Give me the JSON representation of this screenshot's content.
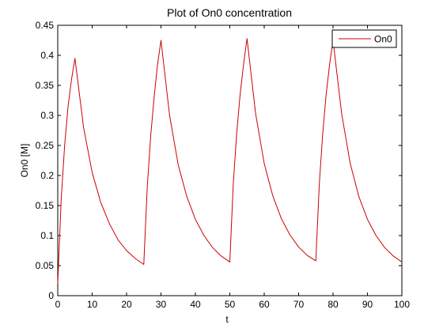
{
  "chart_data": {
    "type": "line",
    "title": "Plot of On0 concentration",
    "xlabel": "t",
    "ylabel": "On0 [M]",
    "xlim": [
      0,
      100
    ],
    "ylim": [
      0,
      0.45
    ],
    "xticks": [
      "0",
      "10",
      "20",
      "30",
      "40",
      "50",
      "60",
      "70",
      "80",
      "90",
      "100"
    ],
    "yticks": [
      "0",
      "0.05",
      "0.1",
      "0.15",
      "0.2",
      "0.25",
      "0.3",
      "0.35",
      "0.4",
      "0.45"
    ],
    "grid": false,
    "legend": "top-right",
    "series": [
      {
        "name": "On0",
        "color": "#cc0000",
        "x": [
          0,
          1,
          2,
          3,
          4,
          5,
          7.5,
          10,
          12.5,
          15,
          17.5,
          20,
          22.5,
          25,
          26,
          27,
          28,
          29,
          30,
          32.5,
          35,
          37.5,
          40,
          42.5,
          45,
          47.5,
          50,
          51,
          52,
          53,
          54,
          55,
          57.5,
          60,
          62.5,
          65,
          67.5,
          70,
          72.5,
          75,
          76,
          77,
          78,
          79,
          80,
          82.5,
          85,
          87.5,
          90,
          92.5,
          95,
          97.5,
          100
        ],
        "y": [
          0.02,
          0.16,
          0.25,
          0.315,
          0.36,
          0.395,
          0.28,
          0.205,
          0.155,
          0.12,
          0.093,
          0.075,
          0.062,
          0.052,
          0.18,
          0.265,
          0.33,
          0.385,
          0.425,
          0.3,
          0.218,
          0.165,
          0.127,
          0.1,
          0.08,
          0.066,
          0.056,
          0.185,
          0.27,
          0.335,
          0.385,
          0.428,
          0.303,
          0.22,
          0.166,
          0.128,
          0.101,
          0.081,
          0.067,
          0.058,
          0.185,
          0.27,
          0.335,
          0.385,
          0.425,
          0.303,
          0.22,
          0.165,
          0.127,
          0.1,
          0.08,
          0.066,
          0.056
        ]
      }
    ]
  }
}
